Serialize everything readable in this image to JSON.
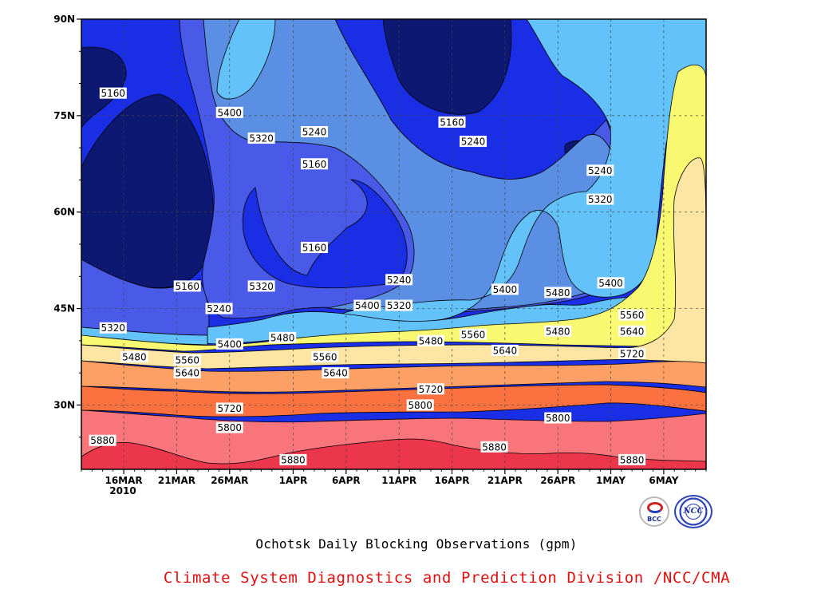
{
  "chart_data": {
    "type": "heatmap",
    "subtype": "filled-contour",
    "title": "Ochotsk Daily Blocking Observations (gpm)",
    "credit": "Climate System Diagnostics and Prediction Division /NCC/CMA",
    "x_ticks": [
      "16MAR",
      "21MAR",
      "26MAR",
      "1APR",
      "6APR",
      "11APR",
      "16APR",
      "21APR",
      "26APR",
      "1MAY",
      "6MAY"
    ],
    "x_year_label": "2010",
    "y_ticks": [
      "90N",
      "75N",
      "60N",
      "45N",
      "30N"
    ],
    "x_range": [
      "2010-03-12",
      "2010-05-10"
    ],
    "y_range_deg": [
      20,
      90
    ],
    "grid": true,
    "contour_levels": [
      5160,
      5240,
      5320,
      5400,
      5480,
      5560,
      5640,
      5720,
      5800,
      5880
    ],
    "fill_colors": [
      "#0d1872",
      "#1a2ee6",
      "#4a5ae8",
      "#5b8fe3",
      "#63c2fa",
      "#f9f871",
      "#fde6a3",
      "#fda065",
      "#fb7240",
      "#f8757b",
      "#ec364b"
    ],
    "contour_labels": [
      {
        "date": "2010-03-15",
        "lat": 78.5,
        "text": "5160"
      },
      {
        "date": "2010-03-26",
        "lat": 75.5,
        "text": "5400"
      },
      {
        "date": "2010-03-29",
        "lat": 71.5,
        "text": "5320"
      },
      {
        "date": "2010-04-03",
        "lat": 72.5,
        "text": "5240"
      },
      {
        "date": "2010-04-03",
        "lat": 67.5,
        "text": "5160"
      },
      {
        "date": "2010-04-03",
        "lat": 54.5,
        "text": "5160"
      },
      {
        "date": "2010-04-16",
        "lat": 74,
        "text": "5160"
      },
      {
        "date": "2010-04-18",
        "lat": 71,
        "text": "5240"
      },
      {
        "date": "2010-04-30",
        "lat": 66.5,
        "text": "5240"
      },
      {
        "date": "2010-04-30",
        "lat": 62,
        "text": "5320"
      },
      {
        "date": "2010-03-22",
        "lat": 48.5,
        "text": "5160"
      },
      {
        "date": "2010-03-25",
        "lat": 45,
        "text": "5240"
      },
      {
        "date": "2010-03-15",
        "lat": 42,
        "text": "5320"
      },
      {
        "date": "2010-03-29",
        "lat": 48.5,
        "text": "5320"
      },
      {
        "date": "2010-04-11",
        "lat": 49.5,
        "text": "5240"
      },
      {
        "date": "2010-04-08",
        "lat": 45.5,
        "text": "5400"
      },
      {
        "date": "2010-04-11",
        "lat": 45.5,
        "text": "5320"
      },
      {
        "date": "2010-04-21",
        "lat": 48,
        "text": "5400"
      },
      {
        "date": "2010-04-26",
        "lat": 47.5,
        "text": "5480"
      },
      {
        "date": "2010-05-01",
        "lat": 49,
        "text": "5400"
      },
      {
        "date": "2010-03-26",
        "lat": 39.5,
        "text": "5400"
      },
      {
        "date": "2010-03-31",
        "lat": 40.5,
        "text": "5480"
      },
      {
        "date": "2010-03-17",
        "lat": 37.5,
        "text": "5480"
      },
      {
        "date": "2010-03-22",
        "lat": 37,
        "text": "5560"
      },
      {
        "date": "2010-03-22",
        "lat": 35,
        "text": "5640"
      },
      {
        "date": "2010-04-04",
        "lat": 37.5,
        "text": "5560"
      },
      {
        "date": "2010-04-05",
        "lat": 35,
        "text": "5640"
      },
      {
        "date": "2010-04-14",
        "lat": 40,
        "text": "5480"
      },
      {
        "date": "2010-04-18",
        "lat": 41,
        "text": "5560"
      },
      {
        "date": "2010-04-21",
        "lat": 38.5,
        "text": "5640"
      },
      {
        "date": "2010-04-26",
        "lat": 41.5,
        "text": "5480"
      },
      {
        "date": "2010-05-03",
        "lat": 44,
        "text": "5560"
      },
      {
        "date": "2010-05-03",
        "lat": 41.5,
        "text": "5640"
      },
      {
        "date": "2010-05-03",
        "lat": 38,
        "text": "5720"
      },
      {
        "date": "2010-03-26",
        "lat": 29.5,
        "text": "5720"
      },
      {
        "date": "2010-03-26",
        "lat": 26.5,
        "text": "5800"
      },
      {
        "date": "2010-04-14",
        "lat": 32.5,
        "text": "5720"
      },
      {
        "date": "2010-04-13",
        "lat": 30,
        "text": "5800"
      },
      {
        "date": "2010-04-26",
        "lat": 28,
        "text": "5800"
      },
      {
        "date": "2010-03-14",
        "lat": 24.5,
        "text": "5880"
      },
      {
        "date": "2010-04-01",
        "lat": 21.5,
        "text": "5880"
      },
      {
        "date": "2010-04-20",
        "lat": 23.5,
        "text": "5880"
      },
      {
        "date": "2010-05-03",
        "lat": 21.5,
        "text": "5880"
      }
    ]
  },
  "logos": {
    "bcc_text": "BCC",
    "ncc_text": "NCC"
  }
}
